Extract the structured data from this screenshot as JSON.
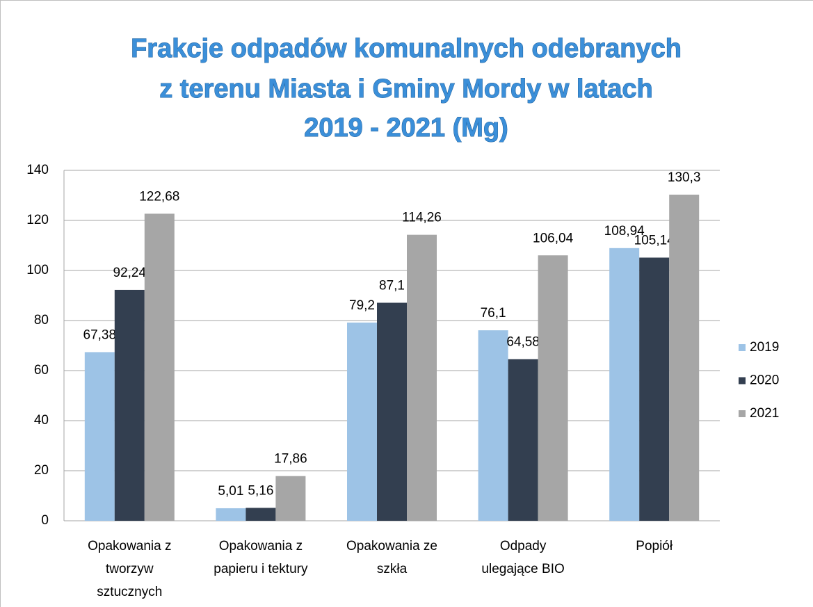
{
  "chart_data": {
    "type": "bar",
    "title": [
      "Frakcje odpadów komunalnych odebranych",
      "z terenu Miasta i Gminy Mordy w latach",
      "2019 - 2021 (Mg)"
    ],
    "categories": [
      [
        "Opakowania z",
        "tworzyw",
        "sztucznych"
      ],
      [
        "Opakowania z",
        "papieru i tektury"
      ],
      [
        "Opakowania ze",
        "szkła"
      ],
      [
        "Odpady",
        "ulegające BIO"
      ],
      [
        "Popiół"
      ]
    ],
    "series": [
      {
        "name": "2019",
        "color": "#9dc3e6",
        "values": [
          67.38,
          5.01,
          79.2,
          76.1,
          108.94
        ],
        "value_labels": [
          "67,38",
          "5,01",
          "79,2",
          "76,1",
          "108,94"
        ]
      },
      {
        "name": "2020",
        "color": "#333f50",
        "values": [
          92.24,
          5.16,
          87.1,
          64.58,
          105.14
        ],
        "value_labels": [
          "92,24",
          "5,16",
          "87,1",
          "64,58",
          "105,14"
        ]
      },
      {
        "name": "2021",
        "color": "#a6a6a6",
        "values": [
          122.68,
          17.86,
          114.26,
          106.04,
          130.3
        ],
        "value_labels": [
          "122,68",
          "17,86",
          "114,26",
          "106,04",
          "130,3"
        ]
      }
    ],
    "ylim": [
      0,
      140
    ],
    "yticks": [
      0,
      20,
      40,
      60,
      80,
      100,
      120,
      140
    ],
    "grid": true,
    "legend": "right"
  }
}
